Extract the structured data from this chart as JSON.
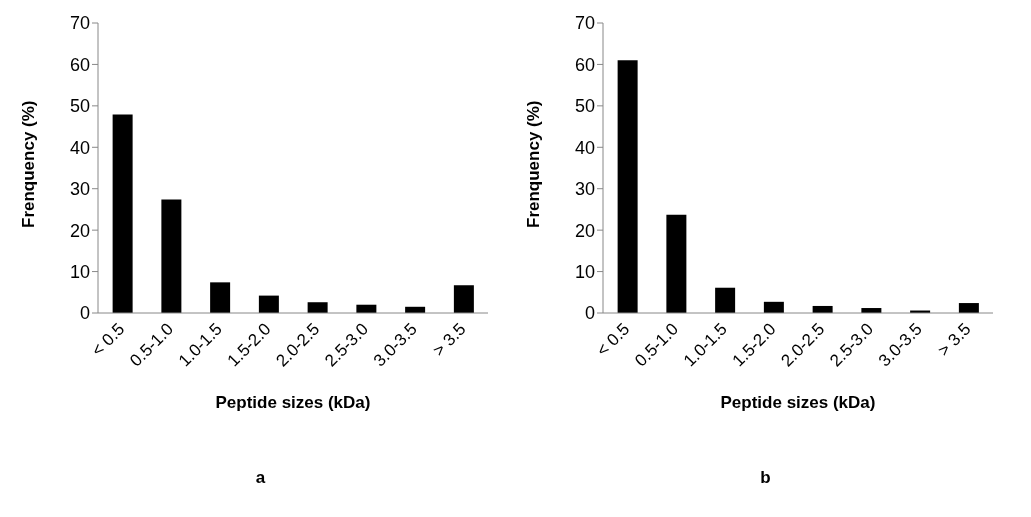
{
  "chart_data": [
    {
      "type": "bar",
      "title": "a",
      "xlabel": "Peptide sizes (kDa)",
      "ylabel": "Frenquency (%)",
      "categories": [
        "< 0.5",
        "0.5-1.0",
        "1.0-1.5",
        "1.5-2.0",
        "2.0-2.5",
        "2.5-3.0",
        "3.0-3.5",
        "> 3.5"
      ],
      "values": [
        47.9,
        27.4,
        7.4,
        4.2,
        2.6,
        2.0,
        1.5,
        6.7
      ],
      "color": "#000000",
      "ylim": [
        0,
        70
      ],
      "yticks": [
        0,
        10,
        20,
        30,
        40,
        50,
        60,
        70
      ]
    },
    {
      "type": "bar",
      "title": "b",
      "xlabel": "Peptide sizes (kDa)",
      "ylabel": "Frenquency (%)",
      "categories": [
        "< 0.5",
        "0.5-1.0",
        "1.0-1.5",
        "1.5-2.0",
        "2.0-2.5",
        "2.5-3.0",
        "3.0-3.5",
        "> 3.5"
      ],
      "values": [
        61.0,
        23.7,
        6.1,
        2.7,
        1.7,
        1.2,
        0.6,
        2.4
      ],
      "color": "#000000",
      "ylim": [
        0,
        70
      ],
      "yticks": [
        0,
        10,
        20,
        30,
        40,
        50,
        60,
        70
      ]
    }
  ]
}
